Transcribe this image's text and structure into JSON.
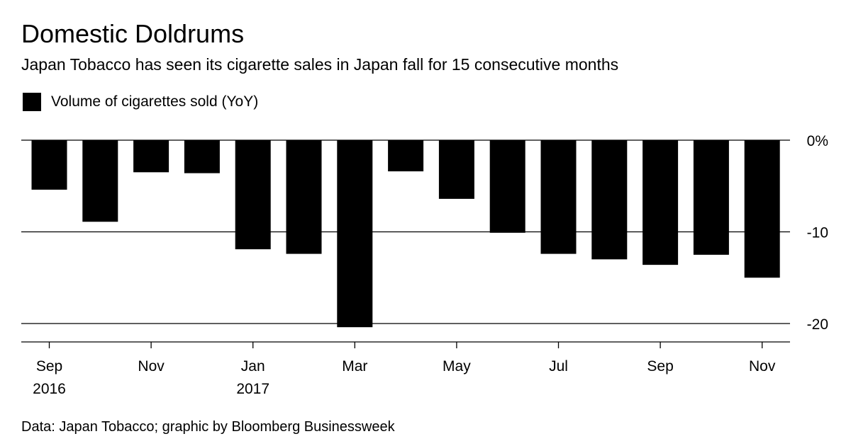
{
  "chart_data": {
    "type": "bar",
    "title": "Domestic Doldrums",
    "subtitle": "Japan Tobacco has seen its cigarette sales in Japan fall for 15 consecutive months",
    "legend": {
      "placement": "top-left",
      "entries": [
        "Volume of cigarettes sold (YoY)"
      ]
    },
    "categories": [
      "Sep 2016",
      "Oct 2016",
      "Nov 2016",
      "Dec 2016",
      "Jan 2017",
      "Feb 2017",
      "Mar 2017",
      "Apr 2017",
      "May 2017",
      "Jun 2017",
      "Jul 2017",
      "Aug 2017",
      "Sep 2017",
      "Oct 2017",
      "Nov 2017"
    ],
    "series": [
      {
        "name": "Volume of cigarettes sold (YoY)",
        "values": [
          -5.4,
          -8.9,
          -3.5,
          -3.6,
          -11.9,
          -12.4,
          -20.4,
          -3.4,
          -6.4,
          -10.1,
          -12.4,
          -13.0,
          -13.6,
          -12.5,
          -15.0
        ],
        "color": "#000000"
      }
    ],
    "x_ticks": [
      {
        "index": 0,
        "label": "Sep",
        "year": "2016"
      },
      {
        "index": 2,
        "label": "Nov",
        "year": ""
      },
      {
        "index": 4,
        "label": "Jan",
        "year": "2017"
      },
      {
        "index": 6,
        "label": "Mar",
        "year": ""
      },
      {
        "index": 8,
        "label": "May",
        "year": ""
      },
      {
        "index": 10,
        "label": "Jul",
        "year": ""
      },
      {
        "index": 12,
        "label": "Sep",
        "year": ""
      },
      {
        "index": 14,
        "label": "Nov",
        "year": ""
      }
    ],
    "y_ticks": [
      {
        "value": 0,
        "label": "0%"
      },
      {
        "value": -10,
        "label": "-10"
      },
      {
        "value": -20,
        "label": "-20"
      }
    ],
    "ylim": [
      -22,
      0
    ],
    "xlabel": "",
    "ylabel": "",
    "grid": true,
    "y_axis_side": "right"
  },
  "source": "Data: Japan Tobacco; graphic by Bloomberg Businessweek"
}
